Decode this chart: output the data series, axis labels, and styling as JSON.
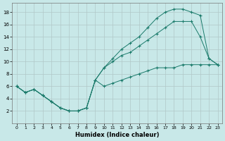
{
  "xlabel": "Humidex (Indice chaleur)",
  "background_color": "#c8e8e8",
  "grid_color": "#b0c8c8",
  "line_color": "#1a7a6a",
  "xlim": [
    -0.5,
    23.5
  ],
  "ylim": [
    0,
    19.5
  ],
  "xticks": [
    0,
    1,
    2,
    3,
    4,
    5,
    6,
    7,
    8,
    9,
    10,
    11,
    12,
    13,
    14,
    15,
    16,
    17,
    18,
    19,
    20,
    21,
    22,
    23
  ],
  "yticks": [
    2,
    4,
    6,
    8,
    10,
    12,
    14,
    16,
    18
  ],
  "curve1_x": [
    0,
    1,
    2,
    3,
    4,
    5,
    6,
    7,
    8,
    9,
    10,
    11,
    12,
    13,
    14,
    15,
    16,
    17,
    18,
    19,
    20,
    21,
    22,
    23
  ],
  "curve1_y": [
    6,
    5,
    5.5,
    4.5,
    3.5,
    2.5,
    2,
    2,
    2.5,
    7,
    6,
    6.5,
    7,
    7.5,
    8,
    8.5,
    9,
    9,
    9,
    9.5,
    9.5,
    9.5,
    9.5,
    9.5
  ],
  "curve2_x": [
    0,
    1,
    2,
    3,
    4,
    5,
    6,
    7,
    8,
    9,
    10,
    11,
    12,
    13,
    14,
    15,
    16,
    17,
    18,
    19,
    20,
    21,
    22,
    23
  ],
  "curve2_y": [
    6,
    5,
    5.5,
    4.5,
    3.5,
    2.5,
    2,
    2,
    2.5,
    7,
    9,
    10.5,
    12,
    13,
    14,
    15.5,
    17,
    18,
    18.5,
    18.5,
    18,
    17.5,
    10.5,
    9.5
  ],
  "curve3_x": [
    0,
    1,
    2,
    3,
    4,
    5,
    6,
    7,
    8,
    9,
    10,
    11,
    12,
    13,
    14,
    15,
    16,
    17,
    18,
    19,
    20,
    21,
    22,
    23
  ],
  "curve3_y": [
    6,
    5,
    5.5,
    4.5,
    3.5,
    2.5,
    2,
    2,
    2.5,
    7,
    9,
    10,
    11,
    11.5,
    12.5,
    13.5,
    14.5,
    15.5,
    16.5,
    16.5,
    16.5,
    14,
    10.5,
    9.5
  ]
}
